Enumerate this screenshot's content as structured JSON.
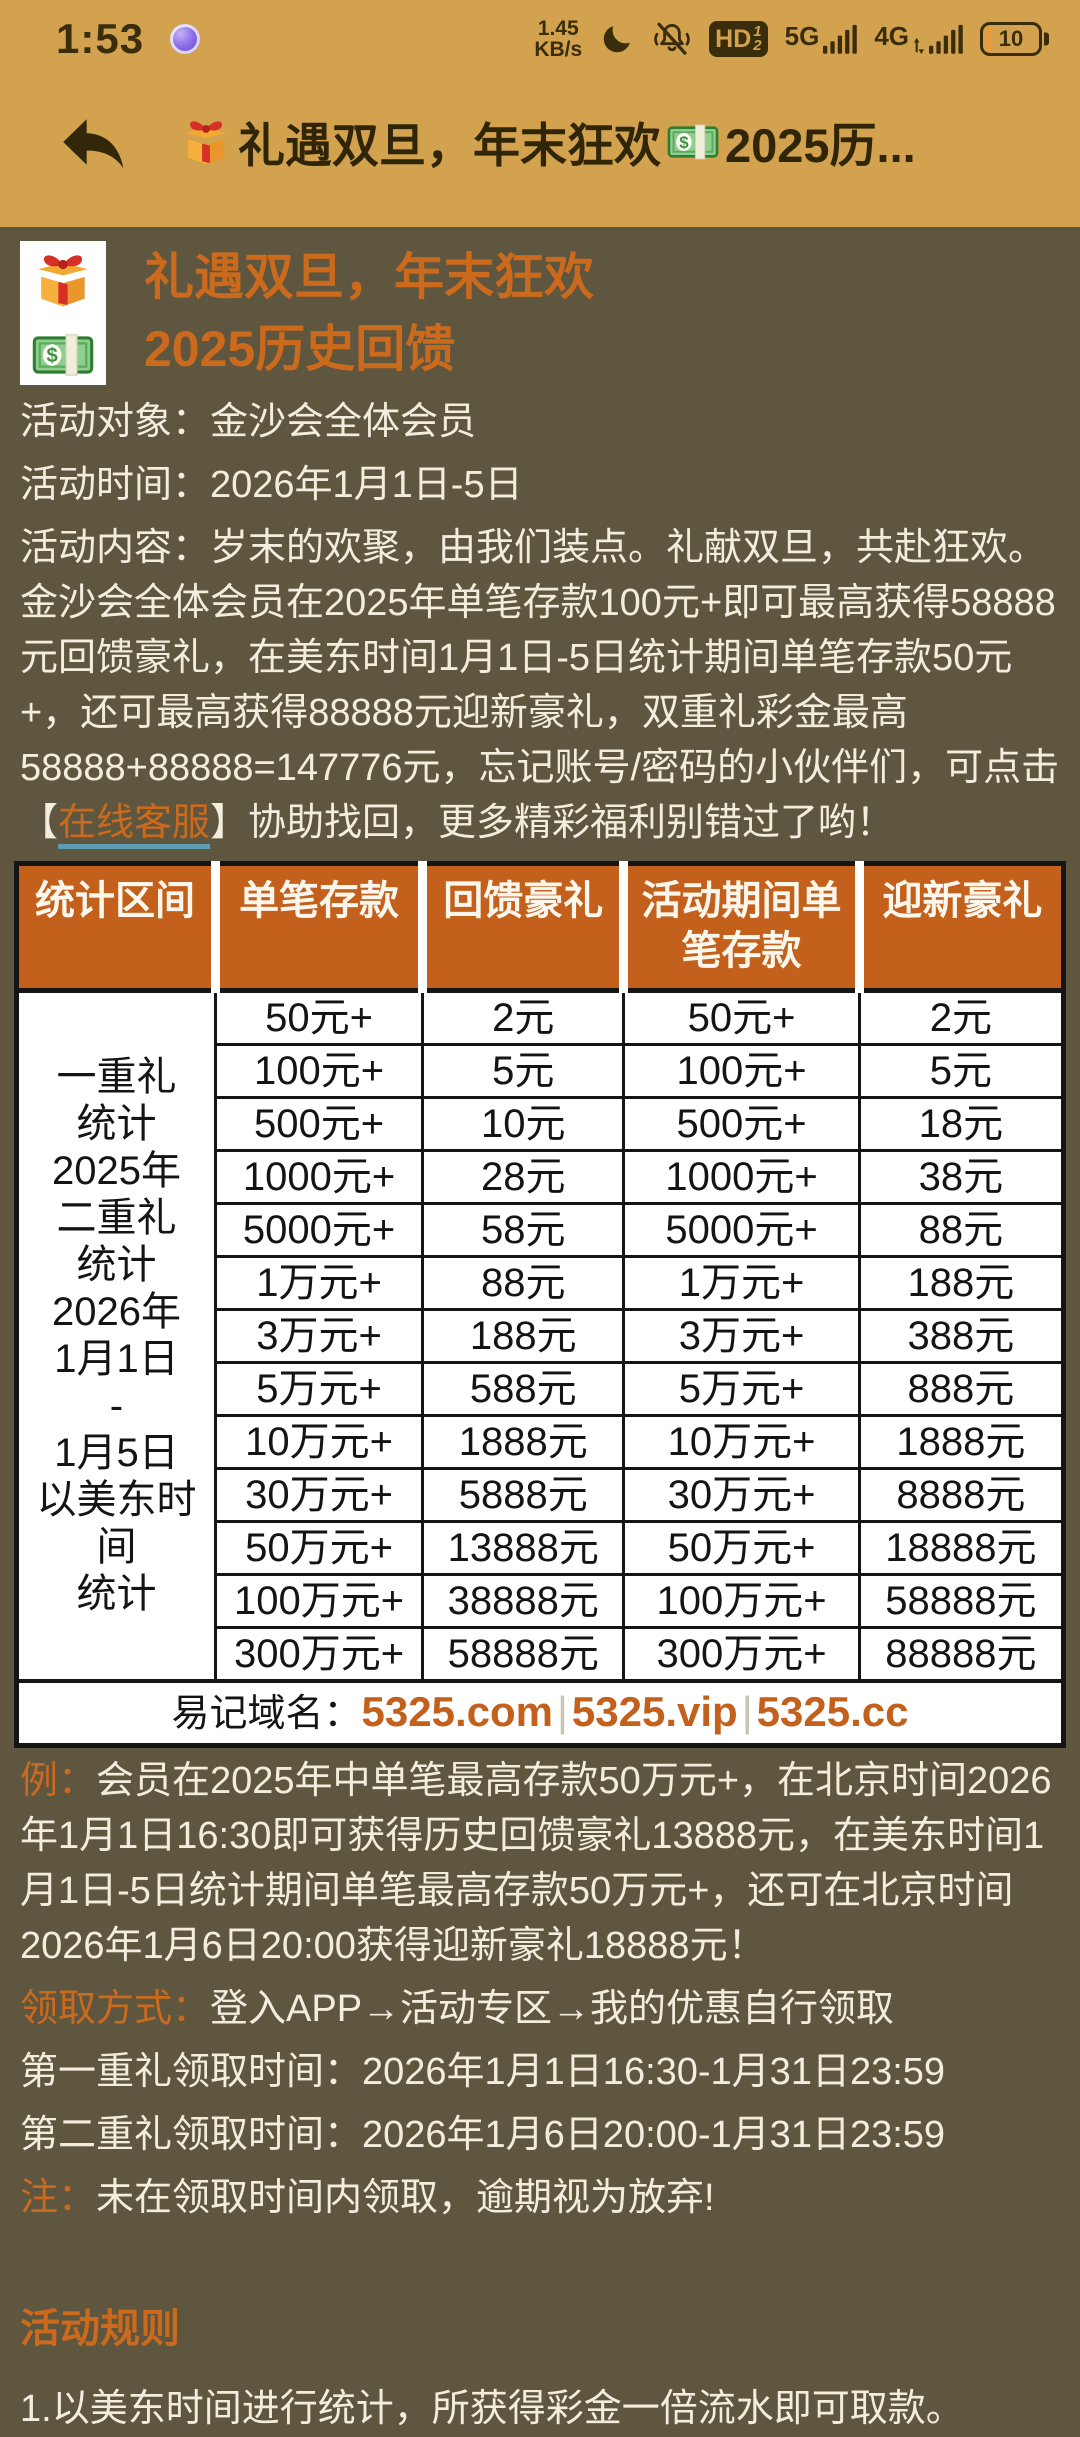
{
  "status_bar": {
    "time": "1:53",
    "net_speed_value": "1.45",
    "net_speed_unit": "KB/s",
    "hd_label": "HD",
    "hd_sim1": "1",
    "hd_sim2": "2",
    "primary_network": "5G",
    "secondary_network": "4G",
    "battery_percent": "10"
  },
  "nav": {
    "title_part1": "礼遇双旦，年末狂欢",
    "title_part2": "2025历..."
  },
  "promo": {
    "title_line1": "礼遇双旦，年末狂欢",
    "title_line2": "2025历史回馈",
    "target_line": "活动对象：金沙会全体会员",
    "time_line": "活动时间：2026年1月1日-5日",
    "content_before_link": "活动内容：岁末的欢聚，由我们装点。礼献双旦，共赴狂欢。金沙会全体会员在2025年单笔存款100元+即可最高获得58888元回馈豪礼，在美东时间1月1日-5日统计期间单笔存款50元+，还可最高获得88888元迎新豪礼，双重礼彩金最高58888+88888=147776元，忘记账号/密码的小伙伴们，可点击【",
    "link_text": "在线客服",
    "content_after_link": "】协助找回，更多精彩福利别错过了哟！"
  },
  "table": {
    "headers": [
      "统计区间",
      "单笔存款",
      "回馈豪礼",
      "活动期间单笔存款",
      "迎新豪礼"
    ],
    "merged_cell_lines": [
      "一重礼",
      "统计",
      "2025年",
      "二重礼",
      "统计",
      "2026年",
      "1月1日",
      "-",
      "1月5日",
      "以美东时",
      "间",
      "统计"
    ],
    "rows": [
      [
        "50元+",
        "2元",
        "50元+",
        "2元"
      ],
      [
        "100元+",
        "5元",
        "100元+",
        "5元"
      ],
      [
        "500元+",
        "10元",
        "500元+",
        "18元"
      ],
      [
        "1000元+",
        "28元",
        "1000元+",
        "38元"
      ],
      [
        "5000元+",
        "58元",
        "5000元+",
        "88元"
      ],
      [
        "1万元+",
        "88元",
        "1万元+",
        "188元"
      ],
      [
        "3万元+",
        "188元",
        "3万元+",
        "388元"
      ],
      [
        "5万元+",
        "588元",
        "5万元+",
        "888元"
      ],
      [
        "10万元+",
        "1888元",
        "10万元+",
        "1888元"
      ],
      [
        "30万元+",
        "5888元",
        "30万元+",
        "8888元"
      ],
      [
        "50万元+",
        "13888元",
        "50万元+",
        "18888元"
      ],
      [
        "100万元+",
        "38888元",
        "100万元+",
        "58888元"
      ],
      [
        "300万元+",
        "58888元",
        "300万元+",
        "88888元"
      ]
    ],
    "footer_label": "易记域名：",
    "domains": [
      "5325.com",
      "5325.vip",
      "5325.cc"
    ],
    "domain_separator": "|"
  },
  "details": {
    "example_label": "例：",
    "example_text": "会员在2025年中单笔最高存款50万元+，在北京时间2026年1月1日16:30即可获得历史回馈豪礼13888元，在美东时间1月1日-5日统计期间单笔最高存款50万元+，还可在北京时间2026年1月6日20:00获得迎新豪礼18888元！",
    "claim_label": "领取方式：",
    "claim_text": "登入APP→活动专区→我的优惠自行领取",
    "first_claim_time": "第一重礼领取时间：2026年1月1日16:30-1月31日23:59",
    "second_claim_time": "第二重礼领取时间：2026年1月6日20:00-1月31日23:59",
    "note_label": "注：",
    "note_text": "未在领取时间内领取，逾期视为放弃!",
    "rules_title": "活动规则",
    "rule_1": "1.以美东时间进行统计，所获得彩金一倍流水即可取款。"
  },
  "colors": {
    "top_bar_gold": "#d2a24f",
    "page_background": "#5e563f",
    "accent_orange": "#cb6a1d",
    "table_header_orange": "#c2601c",
    "body_text": "#f2eddd",
    "link_underline": "#5f9db4"
  }
}
